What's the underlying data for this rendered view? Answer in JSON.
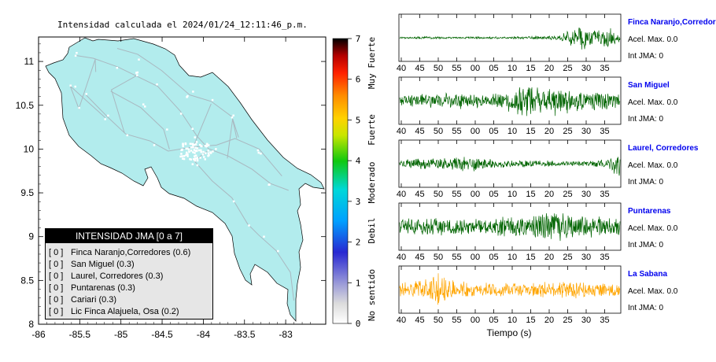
{
  "map": {
    "title": "Intensidad calculada el 2024/01/24_12:11:46_p.m.",
    "lon_ticks": [
      "-86",
      "-85.5",
      "-85",
      "-84.5",
      "-84",
      "-83.5",
      "-83"
    ],
    "lat_ticks": [
      "11",
      "10.5",
      "10",
      "9.5",
      "9",
      "8.5",
      "8"
    ],
    "land_color": "#b2eced",
    "road_color": "#a9b8c0"
  },
  "colorbar": {
    "ticks": [
      "0",
      "1",
      "2",
      "3",
      "4",
      "5",
      "6",
      "7"
    ],
    "labels": [
      "No sentido",
      "Debil",
      "Moderado",
      "Fuerte",
      "Muy Fuerte"
    ]
  },
  "legend": {
    "title": "INTENSIDAD JMA [0 a 7]",
    "rows": [
      {
        "bracket": "[ 0 ]",
        "text": "Finca Naranjo,Corredores (0.6)"
      },
      {
        "bracket": "[ 0 ]",
        "text": "San Miguel (0.3)"
      },
      {
        "bracket": "[ 0 ]",
        "text": "Laurel, Corredores (0.3)"
      },
      {
        "bracket": "[ 0 ]",
        "text": "Puntarenas (0.3)"
      },
      {
        "bracket": "[ 0 ]",
        "text": "Cariari (0.3)"
      },
      {
        "bracket": "[ 0 ]",
        "text": "Lic Finca Alajuela, Osa (0.2)"
      }
    ]
  },
  "waveforms": {
    "x_ticks": [
      "40",
      "45",
      "50",
      "55",
      "00",
      "05",
      "10",
      "15",
      "20",
      "25",
      "30",
      "35"
    ],
    "xlabel": "Tiempo (s)",
    "stations": [
      {
        "name": "Finca Naranjo,Corredor",
        "accel": "Acel. Max. 0.0",
        "jma": "Int JMA: 0",
        "color": "#006400",
        "amps": [
          0.04,
          0.05,
          0.08,
          0.05,
          0.04,
          0.05,
          0.06,
          0.05,
          0.05,
          0.06,
          0.08,
          0.08,
          0.12,
          0.35,
          0.7,
          0.5,
          0.55,
          0.3
        ]
      },
      {
        "name": "San Miguel",
        "accel": "Acel. Max. 0.0",
        "jma": "Int JMA: 0",
        "color": "#006400",
        "amps": [
          0.2,
          0.3,
          0.35,
          0.35,
          0.45,
          0.4,
          0.35,
          0.3,
          0.45,
          0.75,
          0.95,
          0.6,
          0.7,
          0.6,
          0.55,
          0.5,
          0.45,
          0.4
        ]
      },
      {
        "name": "Laurel, Corredores",
        "accel": "Acel. Max. 0.0",
        "jma": "Int JMA: 0",
        "color": "#006400",
        "amps": [
          0.2,
          0.25,
          0.3,
          0.25,
          0.35,
          0.45,
          0.35,
          0.25,
          0.2,
          0.2,
          0.25,
          0.15,
          0.15,
          0.12,
          0.12,
          0.18,
          0.25,
          0.85
        ]
      },
      {
        "name": "Puntarenas",
        "accel": "Acel. Max. 0.0",
        "jma": "Int JMA: 0",
        "color": "#006400",
        "amps": [
          0.35,
          0.4,
          0.45,
          0.45,
          0.4,
          0.4,
          0.45,
          0.45,
          0.55,
          0.5,
          0.6,
          0.7,
          0.9,
          0.75,
          0.55,
          0.5,
          0.45,
          0.4
        ]
      },
      {
        "name": "La Sabana",
        "accel": "Acel. Max. 0.0",
        "jma": "Int JMA: 0",
        "color": "#ffa500",
        "amps": [
          0.35,
          0.45,
          0.5,
          0.9,
          0.5,
          0.4,
          0.35,
          0.35,
          0.35,
          0.35,
          0.35,
          0.4,
          0.35,
          0.5,
          0.4,
          0.35,
          0.4,
          0.35
        ]
      }
    ]
  }
}
